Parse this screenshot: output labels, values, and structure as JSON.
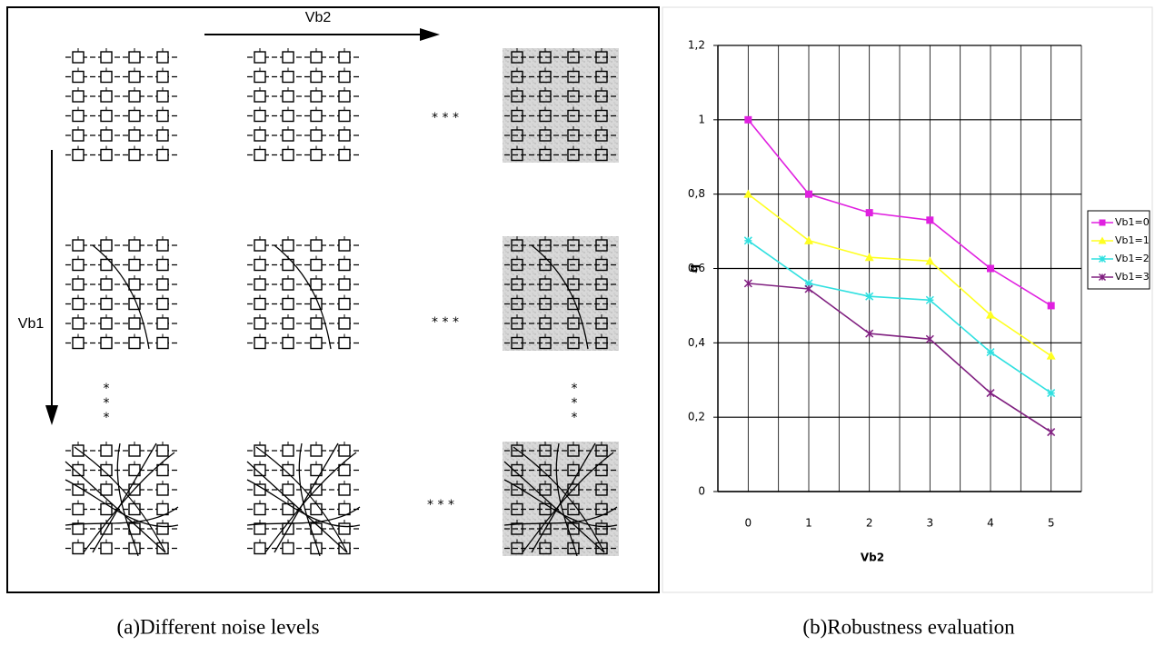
{
  "diagram": {
    "x_label": "Vb2",
    "y_label": "Vb1",
    "h_dots": [
      "* * *",
      "* * *",
      "* * *"
    ],
    "v_dots": [
      [
        "*",
        "*",
        "*"
      ],
      [
        "*",
        "*",
        "*"
      ]
    ]
  },
  "captions": [
    "(a)Different noise levels",
    "(b)Robustness evaluation"
  ],
  "chart_data": {
    "type": "line",
    "x_label": "Vb2",
    "y_label": "q",
    "categories": [
      "0",
      "1",
      "2",
      "3",
      "4",
      "5"
    ],
    "ylim": [
      0,
      1.2
    ],
    "yticks": [
      0,
      {
        "value": 0.2,
        "label": "0,2"
      },
      {
        "value": 0.4,
        "label": "0,4"
      },
      {
        "value": 0.6,
        "label": "0,6"
      },
      {
        "value": 0.8,
        "label": "0,8"
      },
      1,
      {
        "value": 1.2,
        "label": "1,2"
      }
    ],
    "grid": true,
    "legend": "right",
    "series": [
      {
        "name": "Vb1=0",
        "color": "#e020e0",
        "marker": "square",
        "values": [
          1.0,
          0.8,
          0.75,
          0.73,
          0.6,
          0.5
        ]
      },
      {
        "name": "Vb1=1",
        "color": "#ffff20",
        "marker": "triangle",
        "values": [
          0.8,
          0.675,
          0.63,
          0.62,
          0.475,
          0.365
        ]
      },
      {
        "name": "Vb1=2",
        "color": "#30e0e0",
        "marker": "star",
        "values": [
          0.675,
          0.56,
          0.525,
          0.515,
          0.375,
          0.265
        ]
      },
      {
        "name": "Vb1=3",
        "color": "#802080",
        "marker": "cross",
        "values": [
          0.56,
          0.545,
          0.425,
          0.41,
          0.265,
          0.16
        ]
      }
    ]
  }
}
